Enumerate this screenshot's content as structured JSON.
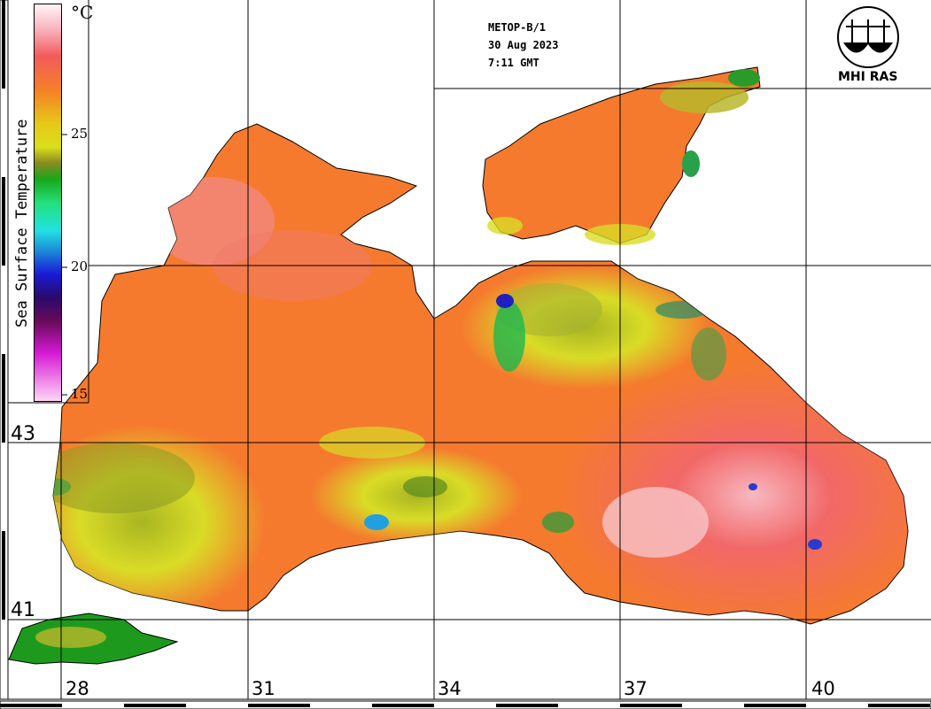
{
  "satellite": "METOP-B/1",
  "date": "30 Aug 2023",
  "time": "7:11 GMT",
  "organization": "MHI RAS",
  "colorbar": {
    "title": "Sea Surface Temperature",
    "unit": "°C",
    "ticks": [
      "25",
      "20",
      "15"
    ]
  },
  "latitudes": [
    "43",
    "41"
  ],
  "longitudes": [
    "28",
    "31",
    "34",
    "37",
    "40"
  ],
  "colors": {
    "warm_water": "#f57a2e",
    "hot_water": "#f36b6b",
    "cool_water": "#d6dd22",
    "land": "#ffffff",
    "grid": "#000000"
  },
  "icons": [
    "mhi-ras-logo-icon"
  ]
}
